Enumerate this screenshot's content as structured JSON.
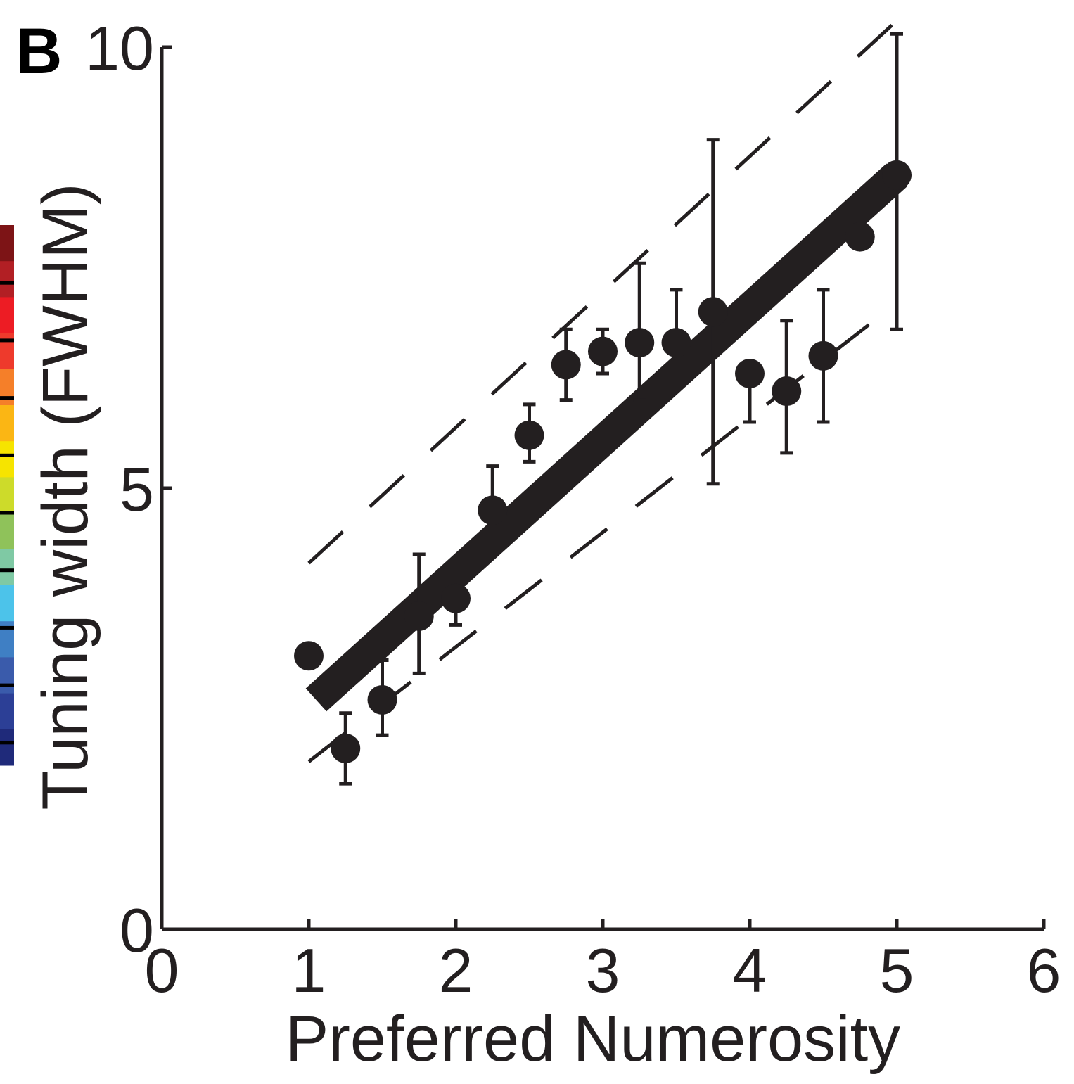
{
  "chart_data": {
    "type": "scatter",
    "panel_label": "B",
    "xlabel": "Preferred Numerosity",
    "ylabel": "Tuning width (FWHM)",
    "xlim": [
      0,
      6
    ],
    "ylim": [
      0,
      10
    ],
    "x_ticks": [
      0,
      1,
      2,
      3,
      4,
      5,
      6
    ],
    "y_ticks": [
      0,
      5,
      10
    ],
    "grid": false,
    "legend": "none",
    "colors": {
      "ink": "#231f20",
      "colorbar": [
        "#1f2a7a",
        "#2c3f96",
        "#3a5bab",
        "#3f7fc4",
        "#4cc3ea",
        "#7fc9a4",
        "#8fc25a",
        "#cddb2a",
        "#f6e400",
        "#fbb614",
        "#f57f29",
        "#ee3a2c",
        "#ed1c24",
        "#b21f24",
        "#7d1416"
      ]
    },
    "points": [
      {
        "x": 1.0,
        "y": 3.1
      },
      {
        "x": 1.25,
        "y": 2.05,
        "err": [
          1.65,
          2.45
        ]
      },
      {
        "x": 1.5,
        "y": 2.6,
        "err": [
          2.2,
          3.05
        ]
      },
      {
        "x": 1.75,
        "y": 3.55,
        "err": [
          2.9,
          4.25
        ]
      },
      {
        "x": 2.0,
        "y": 3.75,
        "err": [
          3.45,
          3.75
        ]
      },
      {
        "x": 2.25,
        "y": 4.75,
        "err": [
          4.75,
          5.25
        ]
      },
      {
        "x": 2.5,
        "y": 5.6,
        "err": [
          5.3,
          5.95
        ]
      },
      {
        "x": 2.75,
        "y": 6.4,
        "err": [
          6.0,
          6.8
        ]
      },
      {
        "x": 3.0,
        "y": 6.55,
        "err": [
          6.3,
          6.8
        ]
      },
      {
        "x": 3.25,
        "y": 6.65,
        "err": [
          6.0,
          7.55
        ]
      },
      {
        "x": 3.5,
        "y": 6.65,
        "err": [
          6.2,
          7.25
        ]
      },
      {
        "x": 3.75,
        "y": 7.0,
        "err": [
          5.05,
          8.95
        ]
      },
      {
        "x": 4.0,
        "y": 6.3,
        "err": [
          5.75,
          6.3
        ]
      },
      {
        "x": 4.25,
        "y": 6.1,
        "err": [
          5.4,
          6.9
        ]
      },
      {
        "x": 4.5,
        "y": 6.5,
        "err": [
          5.75,
          7.25
        ]
      },
      {
        "x": 4.75,
        "y": 7.85
      },
      {
        "x": 5.0,
        "y": 8.55,
        "err": [
          6.8,
          10.15
        ]
      }
    ],
    "fit": {
      "x": [
        1.05,
        5.0
      ],
      "y": [
        2.6,
        8.55
      ]
    },
    "ci_upper": {
      "x": [
        1.0,
        5.0
      ],
      "y": [
        4.15,
        10.3
      ]
    },
    "ci_lower": {
      "x": [
        1.0,
        5.0
      ],
      "y": [
        1.9,
        7.1
      ]
    }
  }
}
